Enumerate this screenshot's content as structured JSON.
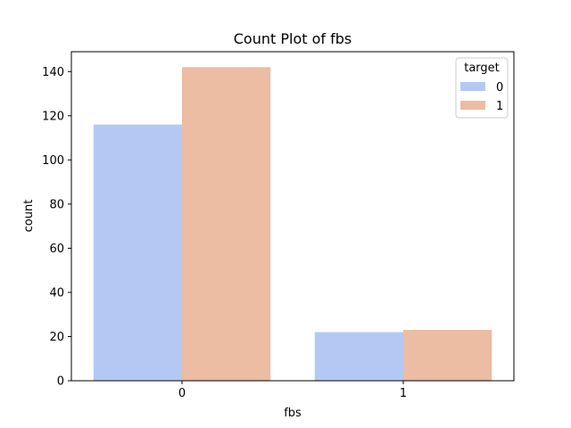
{
  "chart_data": {
    "type": "bar",
    "title": "Count Plot of fbs",
    "xlabel": "fbs",
    "ylabel": "count",
    "categories": [
      "0",
      "1"
    ],
    "series": [
      {
        "name": "0",
        "values": [
          116,
          22
        ],
        "color": "#b3c9f4"
      },
      {
        "name": "1",
        "values": [
          142,
          23
        ],
        "color": "#ecbca3"
      }
    ],
    "ylim": [
      0,
      149
    ],
    "yticks": [
      0,
      20,
      40,
      60,
      80,
      100,
      120,
      140
    ],
    "grid": false,
    "legend": {
      "title": "target",
      "placement": "top-right"
    }
  }
}
